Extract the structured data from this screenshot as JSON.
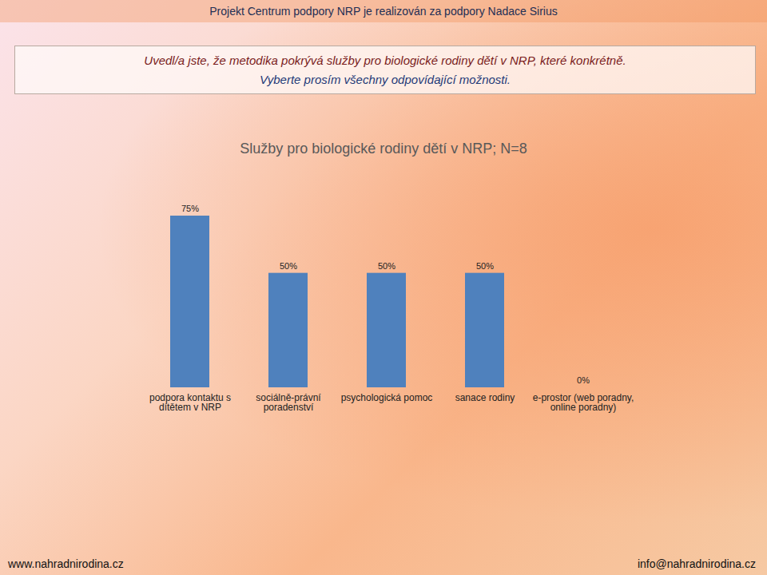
{
  "header": "Projekt Centrum podpory NRP je realizován za podpory Nadace Sirius",
  "question": [
    "Uvedl/a jste, že metodika pokrývá služby pro biologické rodiny dětí v NRP, které konkrétně.",
    "Vyberte prosím všechny odpovídající možnosti."
  ],
  "footer": {
    "left": "www.nahradnirodina.cz",
    "right": "info@nahradnirodina.cz"
  },
  "chart_data": {
    "type": "bar",
    "title": "Služby pro biologické rodiny dětí v NRP; N=8",
    "categories": [
      "podpora kontaktu s dítětem v NRP",
      "sociálně-právní poradenství",
      "psychologická pomoc",
      "sanace rodiny",
      "e-prostor (web poradny, online poradny)"
    ],
    "values": [
      75,
      50,
      50,
      50,
      0
    ],
    "value_labels": [
      "75%",
      "50%",
      "50%",
      "50%",
      "0%"
    ],
    "color": "#4f81bd",
    "data_labels": true,
    "tick_labels": "x",
    "grid": false
  }
}
